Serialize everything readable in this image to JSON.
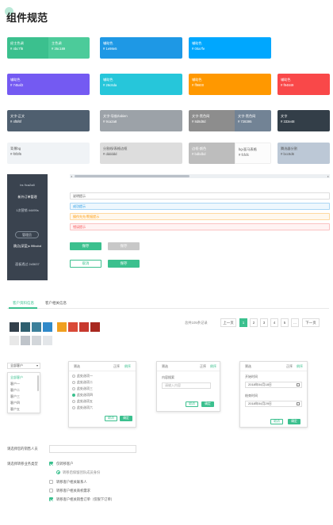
{
  "page": {
    "title": "组件规范"
  },
  "swatches": {
    "theme_main": {
      "name": "经主色调",
      "hex": "# 4bc7f8"
    },
    "theme_mid": {
      "name": "主色调",
      "hex": "# 35c189"
    },
    "aux1": {
      "name": "辅助色",
      "hex": "# 1e98e5"
    },
    "aux2": {
      "name": "辅助色",
      "hex": "# 00a7fe"
    },
    "aux3": {
      "name": "辅助色",
      "hex": "# 745af2"
    },
    "aux4": {
      "name": "辅助色",
      "hex": "# 26c6da"
    },
    "aux5": {
      "name": "辅助色",
      "hex": "# ff9800"
    },
    "aux6": {
      "name": "辅助色",
      "hex": "# f94849"
    },
    "text_main": {
      "name": "文字-正文",
      "hex": "# 4f5f6f"
    },
    "text_nav": {
      "name": "文字-导航/tabien",
      "hex": "# 9ca2a8"
    },
    "text_bg": {
      "name": "文字-黑色网",
      "hex": "# 8d8d8d"
    },
    "text_bg2": {
      "name": "文字-黑色网",
      "hex": "# 728395"
    },
    "text_dark": {
      "name": "文字",
      "hex": "# 333e48"
    },
    "bg": {
      "name": "背景bg",
      "hex": "# f0f3f6"
    },
    "divider": {
      "name": "分割线/表格边框",
      "hex": "# dddddd"
    },
    "border_gray": {
      "name": "边框-颜色",
      "hex": "# bdbdbd"
    },
    "bg_gray": {
      "name": "bg-面马表格",
      "hex": "# fcfcfc"
    },
    "panel_gray": {
      "name": "腾选器分割",
      "hex": "# bcc8d6"
    }
  },
  "colors": {
    "green": "#3bc08e",
    "blue": "#1e98e5",
    "sky": "#00a7fe",
    "purple": "#745af2",
    "cyan": "#26c6da",
    "orange": "#ff9800",
    "red": "#f94849",
    "slate": "#4f5f6f",
    "nav_gray": "#9ca2a8",
    "mid_gray": "#8d8d8d",
    "dark": "#333e48",
    "bg": "#f0f3f6",
    "divider": "#dddddd",
    "border_gray": "#bdbdbd",
    "panel_gray": "#bcc8d6"
  },
  "sidenav": {
    "code": "bs  9ca2a8",
    "title": "新外订单管理",
    "value": "1次营销  44495s",
    "pill": "管理员",
    "line2": "跳点(深蓝)s  99bcbd",
    "line3": "面板透过  2d3637"
  },
  "alerts": {
    "info": "说明提示",
    "success": "成功提示",
    "warning": "操作先先/警报提示",
    "error": "错误提示"
  },
  "buttons": {
    "save1": "保存",
    "save2": "保存",
    "cancel": "取消",
    "save3": "保存"
  },
  "tabs": {
    "tab1": "客户资料信息",
    "tab2": "客户相关信息"
  },
  "pager": {
    "total": "总共105条记录",
    "prev": "上一页",
    "pages": [
      "1",
      "2",
      "3",
      "4",
      "5",
      "..."
    ],
    "next": "下一页"
  },
  "dropdown": {
    "label": "全部客户",
    "items": [
      "全部客户",
      "客户一",
      "客户二",
      "客户三",
      "客户四",
      "客户五"
    ]
  },
  "panel1": {
    "header": "筛选",
    "h2": "正序",
    "h3": "倒序",
    "options": [
      "此处选项一",
      "此处选项二",
      "此处选项三",
      "此处选项四",
      "此处选项五",
      "此处选项六"
    ],
    "cancel": "取消",
    "ok": "确定"
  },
  "panel2": {
    "header": "筛选",
    "h2": "正序",
    "h3": "倒序",
    "field_label": "内容搜索",
    "placeholder": "请输入内容",
    "cancel": "取消",
    "ok": "确定"
  },
  "panel3": {
    "header": "筛选",
    "h2": "正序",
    "h3": "倒序",
    "start_label": "开始时间",
    "start_value": "2018年04月18日",
    "end_label": "结束时间",
    "end_value": "2018年04月29日",
    "cancel": "取消",
    "ok": "确定"
  },
  "form": {
    "label1": "请选择您的销售人员",
    "label2": "请选择转移业务类型",
    "check1": "仅转移客户",
    "radio1": "转移后保留团队成员身份",
    "check2": "转移客户相关联系人",
    "check3": "转移客户相关商机需求",
    "check4": "转移客户相关销售订单（仅限下订单）"
  }
}
